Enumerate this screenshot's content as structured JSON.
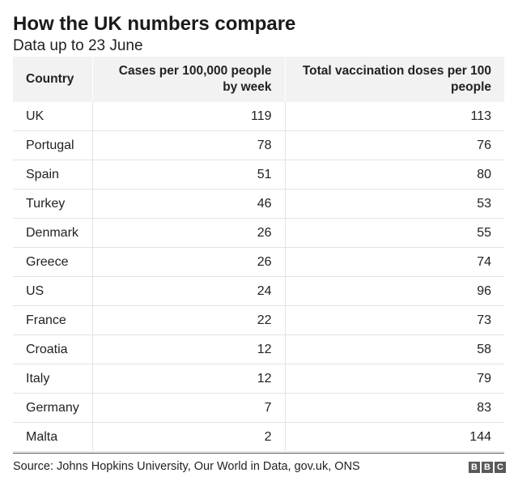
{
  "title": "How the UK numbers compare",
  "subtitle": "Data up to 23 June",
  "source": "Source: Johns Hopkins University, Our World in Data, gov.uk, ONS",
  "logo": {
    "letters": [
      "B",
      "B",
      "C"
    ]
  },
  "colors": {
    "header_bg": "#f2f2f2",
    "row_border": "#e3e3e3",
    "logo_bg": "#5a5a5a"
  },
  "chart_data": {
    "type": "table",
    "title": "How the UK numbers compare",
    "subtitle": "Data up to 23 June",
    "columns": [
      "Country",
      "Cases per 100,000 people by week",
      "Total vaccination doses per 100 people"
    ],
    "rows": [
      {
        "country": "UK",
        "cases": "119",
        "doses": "113"
      },
      {
        "country": "Portugal",
        "cases": "78",
        "doses": "76"
      },
      {
        "country": "Spain",
        "cases": "51",
        "doses": "80"
      },
      {
        "country": "Turkey",
        "cases": "46",
        "doses": "53"
      },
      {
        "country": "Denmark",
        "cases": "26",
        "doses": "55"
      },
      {
        "country": "Greece",
        "cases": "26",
        "doses": "74"
      },
      {
        "country": "US",
        "cases": "24",
        "doses": "96"
      },
      {
        "country": "France",
        "cases": "22",
        "doses": "73"
      },
      {
        "country": "Croatia",
        "cases": "12",
        "doses": "58"
      },
      {
        "country": "Italy",
        "cases": "12",
        "doses": "79"
      },
      {
        "country": "Germany",
        "cases": "7",
        "doses": "83"
      },
      {
        "country": "Malta",
        "cases": "2",
        "doses": "144"
      }
    ]
  }
}
